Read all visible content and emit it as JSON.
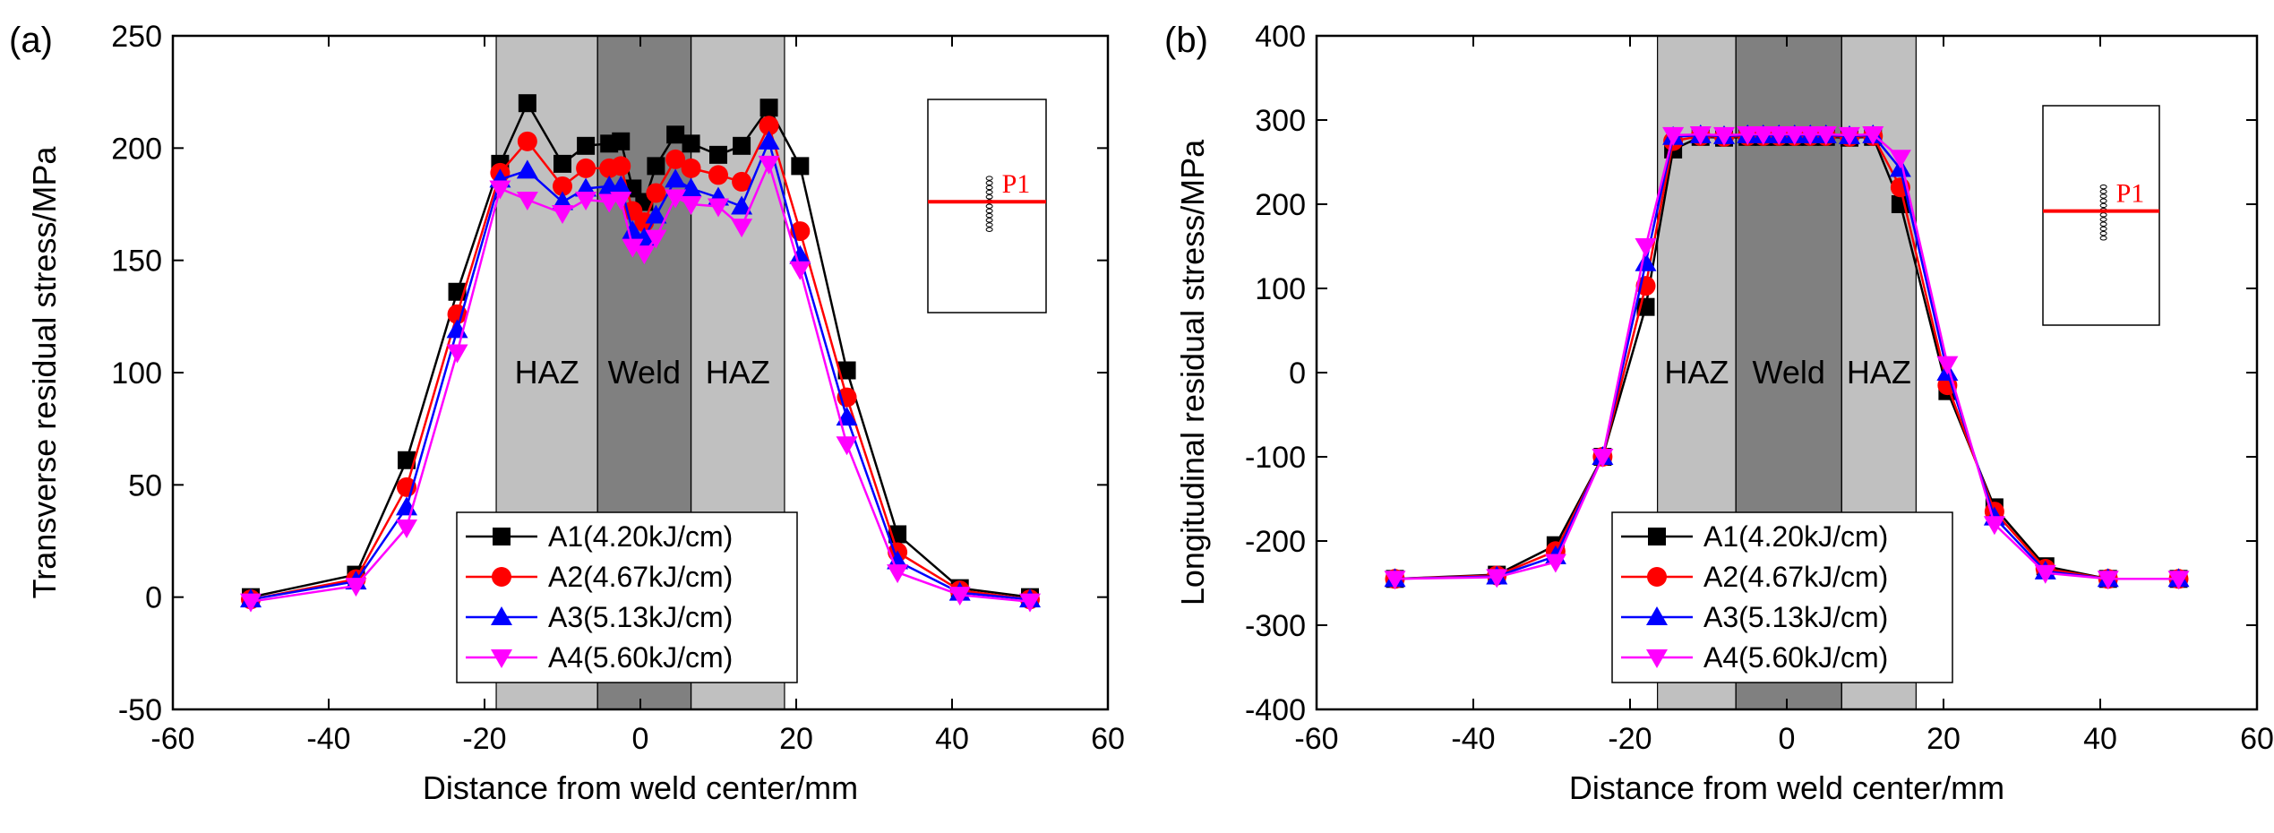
{
  "chart_data": [
    {
      "type": "line",
      "panel_label": "(a)",
      "xlabel": "Distance from weld center/mm",
      "ylabel": "Transverse residual stress/MPa",
      "xlim": [
        -60,
        60
      ],
      "ylim": [
        -50,
        250
      ],
      "xticks": [
        -60,
        -40,
        -20,
        0,
        20,
        40,
        60
      ],
      "yticks": [
        -50,
        0,
        50,
        100,
        150,
        200,
        250
      ],
      "xtick_labels": [
        "-60",
        "-40",
        "-20",
        "0",
        "20",
        "40",
        "60"
      ],
      "ytick_labels": [
        "-50",
        "0",
        "50",
        "100",
        "150",
        "200",
        "250"
      ],
      "zones": [
        {
          "label": "HAZ",
          "x0": -18.5,
          "x1": -5.5,
          "color": "#c0c0c0"
        },
        {
          "label": "Weld",
          "x0": -5.5,
          "x1": 6.5,
          "color": "#808080"
        },
        {
          "label": "HAZ",
          "x0": 6.5,
          "x1": 18.5,
          "color": "#c0c0c0"
        }
      ],
      "inset_label": "P1",
      "legend_position": "bottom-center",
      "series": [
        {
          "name": "A1(4.20kJ/cm)",
          "color": "#000000",
          "marker": "square",
          "x": [
            -50,
            -36.5,
            -30,
            -23.5,
            -18,
            -14.5,
            -10,
            -7,
            -4,
            -2.5,
            -1,
            0.5,
            2,
            4.5,
            6.5,
            10,
            13,
            16.5,
            20.5,
            26.5,
            33,
            41,
            50
          ],
          "y": [
            0,
            10,
            61,
            136,
            193,
            220,
            193,
            201,
            202,
            203,
            182,
            176,
            192,
            206,
            202,
            197,
            201,
            218,
            192,
            101,
            28,
            4,
            0
          ]
        },
        {
          "name": "A2(4.67kJ/cm)",
          "color": "#ff0000",
          "marker": "circle",
          "x": [
            -50,
            -36.5,
            -30,
            -23.5,
            -18,
            -14.5,
            -10,
            -7,
            -4,
            -2.5,
            -1,
            0.5,
            2,
            4.5,
            6.5,
            10,
            13,
            16.5,
            20.5,
            26.5,
            33,
            41,
            50
          ],
          "y": [
            -1,
            8,
            49,
            126,
            189,
            203,
            183,
            191,
            191,
            192,
            172,
            167,
            180,
            195,
            191,
            188,
            185,
            210,
            163,
            89,
            20,
            3,
            -1
          ]
        },
        {
          "name": "A3(5.13kJ/cm)",
          "color": "#0000ff",
          "marker": "triangle-up",
          "x": [
            -50,
            -36.5,
            -30,
            -23.5,
            -18,
            -14.5,
            -10,
            -7,
            -4,
            -2.5,
            -1,
            0.5,
            2,
            4.5,
            6.5,
            10,
            13,
            16.5,
            20.5,
            26.5,
            33,
            41,
            50
          ],
          "y": [
            -1,
            7,
            40,
            119,
            186,
            190,
            176,
            182,
            183,
            183,
            163,
            160,
            170,
            186,
            182,
            178,
            174,
            203,
            152,
            80,
            16,
            2,
            -1
          ]
        },
        {
          "name": "A4(5.60kJ/cm)",
          "color": "#ff00ff",
          "marker": "triangle-down",
          "x": [
            -50,
            -36.5,
            -30,
            -23.5,
            -18,
            -14.5,
            -10,
            -7,
            -4,
            -2.5,
            -1,
            0.5,
            2,
            4.5,
            6.5,
            10,
            13,
            16.5,
            20.5,
            26.5,
            33,
            41,
            50
          ],
          "y": [
            -2,
            5,
            31,
            109,
            182,
            177,
            171,
            177,
            176,
            177,
            156,
            153,
            160,
            178,
            175,
            174,
            165,
            193,
            146,
            68,
            11,
            1,
            -2
          ]
        }
      ]
    },
    {
      "type": "line",
      "panel_label": "(b)",
      "xlabel": "Distance from weld center/mm",
      "ylabel": "Longitudinal residual stress/MPa",
      "xlim": [
        -60,
        60
      ],
      "ylim": [
        -400,
        400
      ],
      "xticks": [
        -60,
        -40,
        -20,
        0,
        20,
        40,
        60
      ],
      "yticks": [
        -400,
        -300,
        -200,
        -100,
        0,
        100,
        200,
        300,
        400
      ],
      "xtick_labels": [
        "-60",
        "-40",
        "-20",
        "0",
        "20",
        "40",
        "60"
      ],
      "ytick_labels": [
        "-400",
        "-300",
        "-200",
        "-100",
        "0",
        "100",
        "200",
        "300",
        "400"
      ],
      "zones": [
        {
          "label": "HAZ",
          "x0": -16.5,
          "x1": -6.5,
          "color": "#c0c0c0"
        },
        {
          "label": "Weld",
          "x0": -6.5,
          "x1": 7,
          "color": "#808080"
        },
        {
          "label": "HAZ",
          "x0": 7,
          "x1": 16.5,
          "color": "#c0c0c0"
        }
      ],
      "inset_label": "P1",
      "legend_position": "bottom-center",
      "series": [
        {
          "name": "A1(4.20kJ/cm)",
          "color": "#000000",
          "marker": "square",
          "x": [
            -50,
            -37,
            -29.5,
            -23.5,
            -18,
            -14.5,
            -11,
            -8,
            -5,
            -3,
            -1,
            1,
            3,
            5,
            8,
            11,
            14.5,
            20.5,
            26.5,
            33,
            41,
            50
          ],
          "y": [
            -245,
            -240,
            -205,
            -100,
            78,
            265,
            280,
            279,
            280,
            280,
            280,
            280,
            280,
            280,
            279,
            280,
            200,
            -22,
            -160,
            -230,
            -245,
            -245
          ]
        },
        {
          "name": "A2(4.67kJ/cm)",
          "color": "#ff0000",
          "marker": "circle",
          "x": [
            -50,
            -37,
            -29.5,
            -23.5,
            -18,
            -14.5,
            -11,
            -8,
            -5,
            -3,
            -1,
            1,
            3,
            5,
            8,
            11,
            14.5,
            20.5,
            26.5,
            33,
            41,
            50
          ],
          "y": [
            -245,
            -241,
            -212,
            -100,
            103,
            275,
            281,
            280,
            281,
            281,
            281,
            281,
            281,
            281,
            280,
            281,
            220,
            -15,
            -165,
            -233,
            -245,
            -245
          ]
        },
        {
          "name": "A3(5.13kJ/cm)",
          "color": "#0000ff",
          "marker": "triangle-up",
          "x": [
            -50,
            -37,
            -29.5,
            -23.5,
            -18,
            -14.5,
            -11,
            -8,
            -5,
            -3,
            -1,
            1,
            3,
            5,
            8,
            11,
            14.5,
            20.5,
            26.5,
            33,
            41,
            50
          ],
          "y": [
            -245,
            -242,
            -218,
            -100,
            130,
            280,
            282,
            281,
            282,
            282,
            282,
            282,
            282,
            282,
            281,
            282,
            242,
            0,
            -172,
            -236,
            -245,
            -245
          ]
        },
        {
          "name": "A4(5.60kJ/cm)",
          "color": "#ff00ff",
          "marker": "triangle-down",
          "x": [
            -50,
            -37,
            -29.5,
            -23.5,
            -18,
            -14.5,
            -11,
            -8,
            -5,
            -3,
            -1,
            1,
            3,
            5,
            8,
            11,
            14.5,
            20.5,
            26.5,
            33,
            41,
            50
          ],
          "y": [
            -245,
            -243,
            -225,
            -100,
            150,
            282,
            283,
            282,
            283,
            283,
            283,
            283,
            283,
            283,
            282,
            283,
            255,
            10,
            -180,
            -238,
            -245,
            -245
          ]
        }
      ]
    }
  ]
}
